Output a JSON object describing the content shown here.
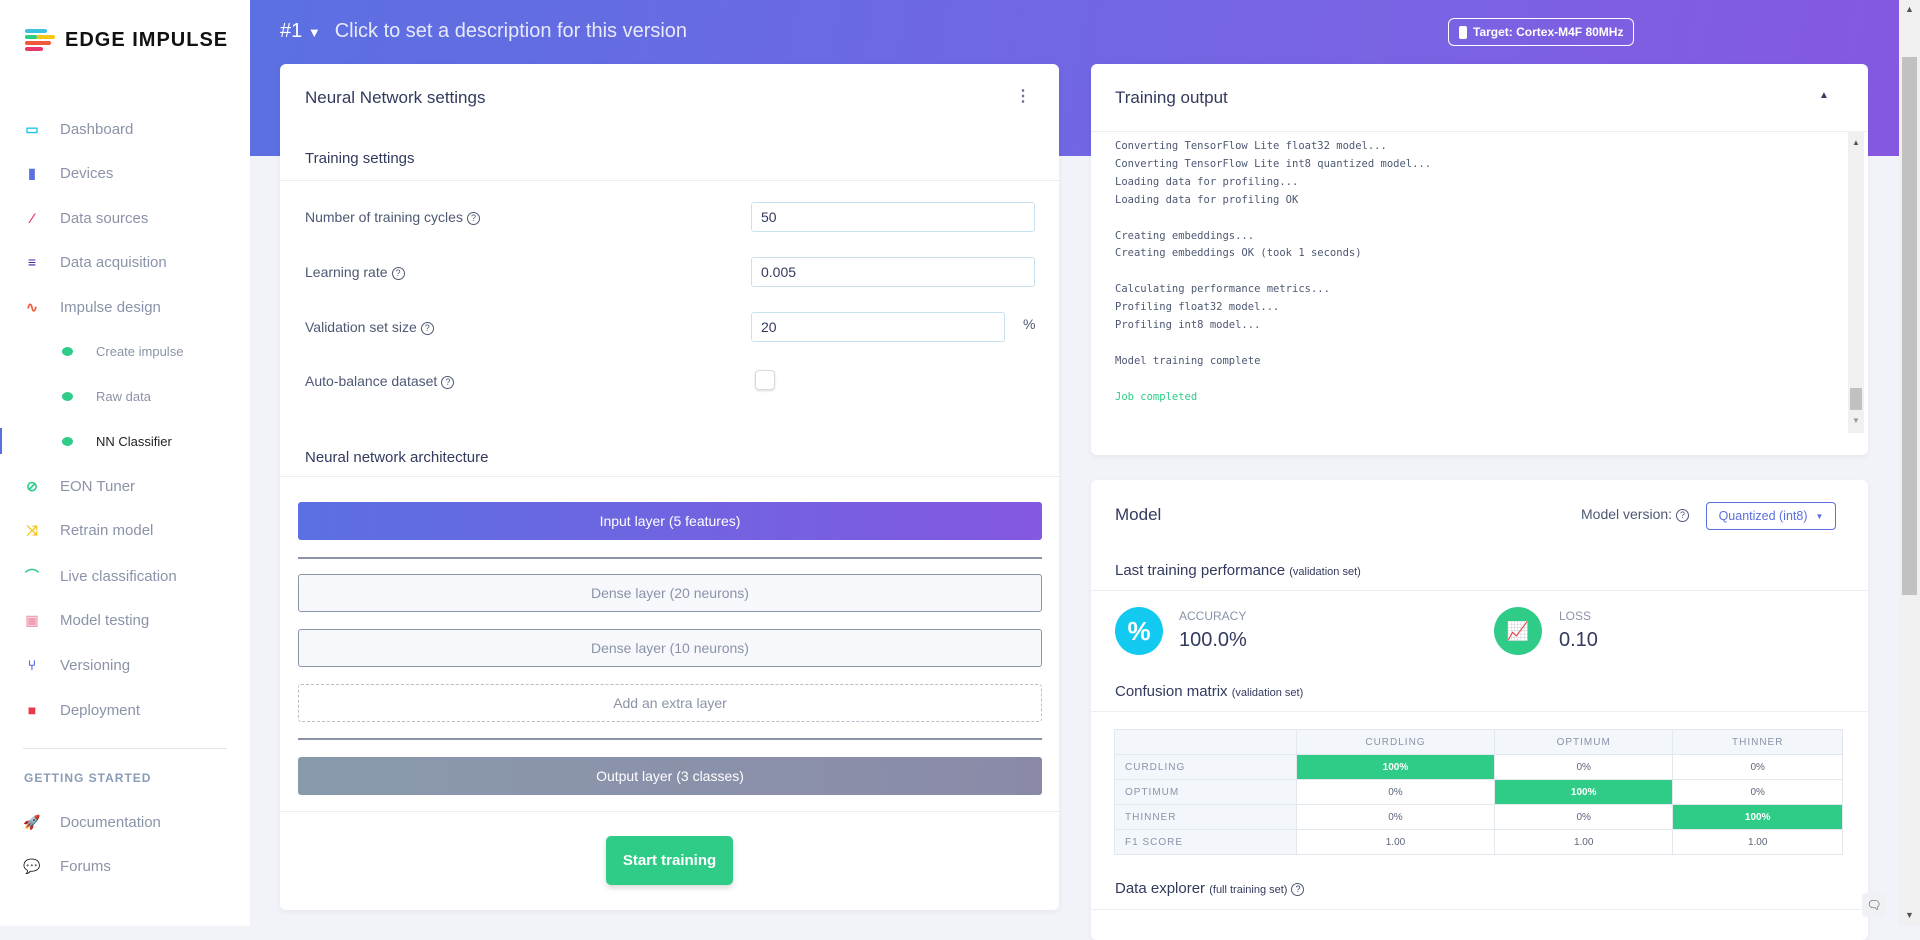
{
  "brand": {
    "name": "EDGE IMPULSE"
  },
  "sidebar": {
    "items": [
      {
        "label": "Dashboard",
        "icon": "monitor-icon",
        "color": "#22c5e8"
      },
      {
        "label": "Devices",
        "icon": "chip-icon",
        "color": "#5b6fe0"
      },
      {
        "label": "Data sources",
        "icon": "magic-wand-icon",
        "color": "#e83a6a"
      },
      {
        "label": "Data acquisition",
        "icon": "database-icon",
        "color": "#4a1fa0"
      },
      {
        "label": "Impulse design",
        "icon": "pulse-icon",
        "color": "#f05a3a"
      },
      {
        "label": "Create impulse",
        "sub": true
      },
      {
        "label": "Raw data",
        "sub": true
      },
      {
        "label": "NN Classifier",
        "sub": true,
        "active": true
      },
      {
        "label": "EON Tuner",
        "icon": "compass-icon",
        "color": "#2ecc87"
      },
      {
        "label": "Retrain model",
        "icon": "shuffle-icon",
        "color": "#f5c518"
      },
      {
        "label": "Live classification",
        "icon": "live-icon",
        "color": "#2ecc87"
      },
      {
        "label": "Model testing",
        "icon": "clipboard-check-icon",
        "color": "#f0a0b0"
      },
      {
        "label": "Versioning",
        "icon": "branch-icon",
        "color": "#5b6fe0"
      },
      {
        "label": "Deployment",
        "icon": "box-icon",
        "color": "#e83a4a"
      }
    ],
    "section": "GETTING STARTED",
    "help": [
      {
        "label": "Documentation",
        "icon": "rocket-icon"
      },
      {
        "label": "Forums",
        "icon": "chat-icon"
      }
    ]
  },
  "header": {
    "version": "#1",
    "description": "Click to set a description for this version",
    "target": "Target: Cortex-M4F 80MHz"
  },
  "nn": {
    "title": "Neural Network settings",
    "training_title": "Training settings",
    "fields": {
      "cycles_label": "Number of training cycles",
      "cycles": "50",
      "lr_label": "Learning rate",
      "lr": "0.005",
      "val_label": "Validation set size",
      "val": "20",
      "val_unit": "%",
      "balance_label": "Auto-balance dataset",
      "balance": false
    },
    "arch_title": "Neural network architecture",
    "layers": {
      "input": "Input layer (5 features)",
      "dense1": "Dense layer (20 neurons)",
      "dense2": "Dense layer (10 neurons)",
      "add": "Add an extra layer",
      "output": "Output layer (3 classes)"
    },
    "start": "Start training"
  },
  "output": {
    "title": "Training output",
    "lines": [
      "Converting TensorFlow Lite float32 model...",
      "Converting TensorFlow Lite int8 quantized model...",
      "Loading data for profiling...",
      "Loading data for profiling OK",
      "",
      "Creating embeddings...",
      "Creating embeddings OK (took 1 seconds)",
      "",
      "Calculating performance metrics...",
      "Profiling float32 model...",
      "Profiling int8 model...",
      "",
      "Model training complete",
      ""
    ],
    "done": "Job completed"
  },
  "model": {
    "title": "Model",
    "version_label": "Model version:",
    "version": "Quantized (int8)",
    "perf_title": "Last training performance",
    "perf_note": "(validation set)",
    "accuracy_label": "ACCURACY",
    "accuracy": "100.0%",
    "loss_label": "LOSS",
    "loss": "0.10",
    "cm_title": "Confusion matrix",
    "cm_note": "(validation set)",
    "cm": {
      "cols": [
        "CURDLING",
        "OPTIMUM",
        "THINNER"
      ],
      "rows": [
        {
          "label": "CURDLING",
          "values": [
            "100%",
            "0%",
            "0%"
          ]
        },
        {
          "label": "OPTIMUM",
          "values": [
            "0%",
            "100%",
            "0%"
          ]
        },
        {
          "label": "THINNER",
          "values": [
            "0%",
            "0%",
            "100%"
          ]
        },
        {
          "label": "F1 SCORE",
          "values": [
            "1.00",
            "1.00",
            "1.00"
          ]
        }
      ]
    },
    "explorer_title": "Data explorer",
    "explorer_note": "(full training set)"
  }
}
